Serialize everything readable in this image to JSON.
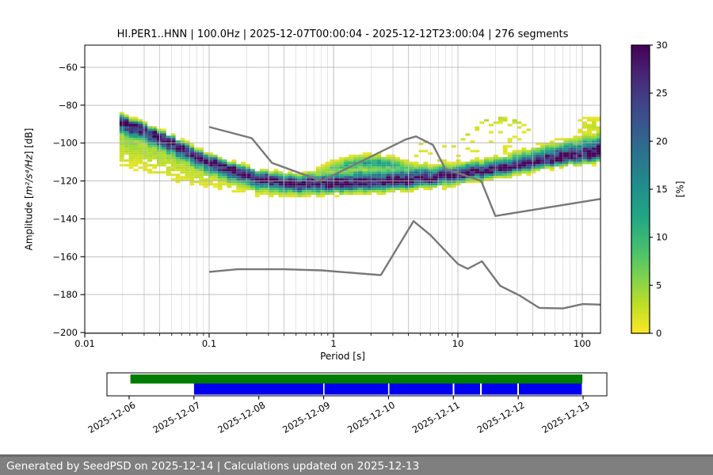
{
  "figure": {
    "footer_text": "Generated by SeedPSD on 2025-12-14 | Calculations updated on 2025-12-13"
  },
  "chart_data": {
    "type": "heatmap",
    "subtype": "ppsd-probability-density",
    "title": "HI.PER1..HNN | 100.0Hz | 2025-12-07T00:00:04 - 2025-12-12T23:00:04 | 276 segments",
    "xlabel": "Period [s]",
    "ylabel": "Amplitude [m²/s⁴/Hz] [dB]",
    "ylabel_prefix": "Amplitude [",
    "ylabel_math": "m²/s⁴/Hz",
    "ylabel_suffix": "] [dB]",
    "x_scale": "log",
    "xlim": [
      0.01,
      140
    ],
    "ylim": [
      -200.5,
      -48
    ],
    "x_ticks": [
      0.01,
      0.1,
      1,
      10,
      100
    ],
    "x_tick_labels": [
      "0.01",
      "0.1",
      "1",
      "10",
      "100"
    ],
    "y_ticks": [
      -60,
      -80,
      -100,
      -120,
      -140,
      -160,
      -180,
      -200
    ],
    "grid": true,
    "colors": {
      "grid": "#b0b0b0",
      "spine": "#000000",
      "noise_model_line": "#787878",
      "timeline_green": "#007c00",
      "timeline_blue": "#0000f0",
      "footer_bg": "#7f7f7f",
      "footer_text": "#ffffff"
    },
    "colorbar": {
      "label": "[%]",
      "vmin": 0,
      "vmax": 30,
      "ticks": [
        0,
        5,
        10,
        15,
        20,
        25,
        30
      ],
      "colormap": "viridis-reversed",
      "color_low_pct": "#fde725",
      "color_high_pct": "#440154"
    },
    "noise_models": {
      "nhnm_db_vs_period": [
        [
          0.1,
          -91.5
        ],
        [
          0.22,
          -97.4
        ],
        [
          0.32,
          -110.5
        ],
        [
          0.8,
          -120.0
        ],
        [
          3.8,
          -98.1
        ],
        [
          4.6,
          -96.5
        ],
        [
          6.3,
          -101.0
        ],
        [
          7.9,
          -113.5
        ],
        [
          15.4,
          -120.0
        ],
        [
          20.0,
          -138.5
        ],
        [
          140.0,
          -129.5
        ]
      ],
      "nlnm_db_vs_period": [
        [
          0.1,
          -168.0
        ],
        [
          0.17,
          -166.6
        ],
        [
          0.4,
          -166.6
        ],
        [
          0.8,
          -167.2
        ],
        [
          1.24,
          -168.2
        ],
        [
          2.4,
          -169.7
        ],
        [
          4.4,
          -141.2
        ],
        [
          6.0,
          -148.5
        ],
        [
          10.0,
          -163.8
        ],
        [
          12.0,
          -166.4
        ],
        [
          15.6,
          -162.4
        ],
        [
          21.9,
          -175.4
        ],
        [
          31.6,
          -180.6
        ],
        [
          45.0,
          -187.0
        ],
        [
          70.0,
          -187.3
        ],
        [
          101.0,
          -185.0
        ],
        [
          140.0,
          -185.3
        ]
      ]
    },
    "ppsd_distribution": {
      "period_range": [
        0.019,
        140
      ],
      "period_bins_per_decade": 26.6,
      "db_bin_height": 1.25,
      "mode_db_vs_period": [
        [
          0.019,
          -88
        ],
        [
          0.03,
          -93
        ],
        [
          0.05,
          -99.5
        ],
        [
          0.08,
          -106.5
        ],
        [
          0.13,
          -112.5
        ],
        [
          0.25,
          -118.5
        ],
        [
          0.45,
          -121
        ],
        [
          0.9,
          -121.8
        ],
        [
          1.8,
          -120.8
        ],
        [
          3.5,
          -119.8
        ],
        [
          6,
          -118.5
        ],
        [
          10,
          -116.8
        ],
        [
          20,
          -114
        ],
        [
          40,
          -110.5
        ],
        [
          80,
          -107.2
        ],
        [
          140,
          -105.5
        ]
      ],
      "sigma_above": [
        [
          0.019,
          1.6
        ],
        [
          0.1,
          1.7
        ],
        [
          0.5,
          2.2
        ],
        [
          1,
          3.0
        ],
        [
          2,
          3.6
        ],
        [
          5,
          3.2
        ],
        [
          10,
          2.6
        ],
        [
          20,
          2.8
        ],
        [
          40,
          3.4
        ],
        [
          80,
          4.2
        ],
        [
          140,
          5.0
        ]
      ],
      "sigma_below": [
        [
          0.019,
          4.0
        ],
        [
          0.05,
          4.0
        ],
        [
          0.1,
          3.8
        ],
        [
          0.3,
          3.2
        ],
        [
          1,
          2.6
        ],
        [
          5,
          2.4
        ],
        [
          10,
          2.2
        ],
        [
          20,
          2.2
        ],
        [
          40,
          2.0
        ],
        [
          140,
          2.2
        ]
      ],
      "tail_below_db": [
        [
          0.019,
          24
        ],
        [
          0.05,
          20
        ],
        [
          0.1,
          13
        ],
        [
          0.3,
          7
        ],
        [
          1,
          4
        ],
        [
          5,
          5
        ],
        [
          10,
          4
        ],
        [
          20,
          3.5
        ],
        [
          40,
          2.5
        ],
        [
          140,
          2.5
        ]
      ],
      "tail_amplitude": [
        [
          0.019,
          5.5
        ],
        [
          0.05,
          5.0
        ],
        [
          0.1,
          4.0
        ],
        [
          0.3,
          3.0
        ],
        [
          1,
          3.0
        ],
        [
          140,
          3.0
        ]
      ],
      "microseism_hump": {
        "period_range": [
          0.7,
          8
        ],
        "log_center": 0.301,
        "peak_db": -110.5,
        "curvature": 34,
        "amplitude": 12,
        "sigma_db": 2.2,
        "log_sigma": 0.3
      },
      "outlier_arc": {
        "period_range": [
          7,
          38
        ],
        "log_center": 1.35,
        "peak_db": -88.5,
        "curvature": 90,
        "density": 2.3,
        "half_width_db": 1.9,
        "gap_probability": 0.33
      },
      "right_edge_blob": {
        "period_range": [
          90,
          140
        ],
        "log_center": 2.08,
        "log_sigma": 0.12,
        "center_db": -91,
        "sigma_db": 3,
        "density": 2.6
      }
    },
    "timeline": {
      "axis_dates": [
        "2025-12-06",
        "2025-12-07",
        "2025-12-08",
        "2025-12-09",
        "2025-12-10",
        "2025-12-11",
        "2025-12-12",
        "2025-12-13"
      ],
      "data_available_segments_days": [
        [
          0.02,
          6.99
        ]
      ],
      "processed_segments_days": [
        [
          1.0,
          2.993
        ],
        [
          3.012,
          3.993
        ],
        [
          4.013,
          4.99
        ],
        [
          5.015,
          5.412
        ],
        [
          5.437,
          5.986
        ],
        [
          6.01,
          6.98
        ]
      ]
    }
  }
}
